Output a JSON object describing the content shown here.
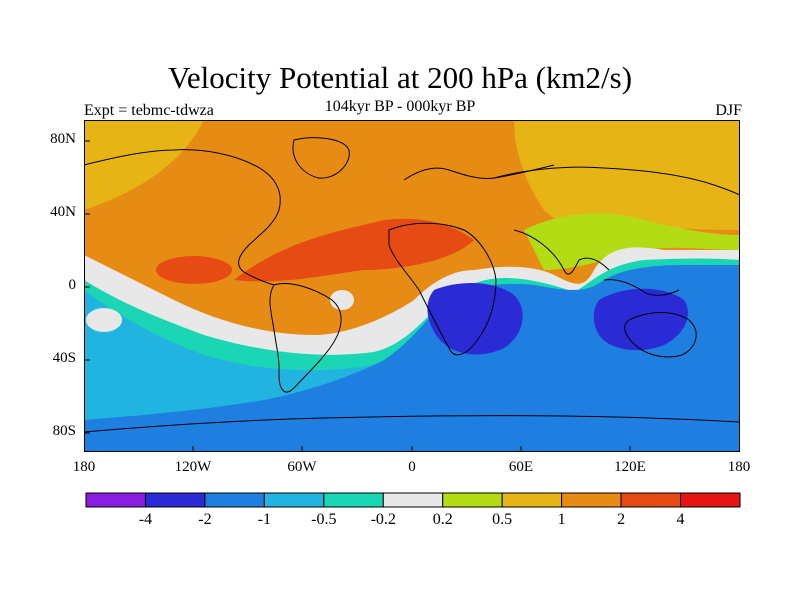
{
  "title": "Velocity Potential at 200 hPa (km2/s)",
  "subtitle": "104kyr BP - 000kyr BP",
  "left_label": "Expt = tebmc-tdwza",
  "right_label": "DJF",
  "lat_labels": [
    "80N",
    "40N",
    "0",
    "40S",
    "80S"
  ],
  "lon_labels": [
    "180",
    "120W",
    "60W",
    "0",
    "60E",
    "120E",
    "180"
  ],
  "colorbar": {
    "labels": [
      "-4",
      "-2",
      "-1",
      "-0.5",
      "-0.2",
      "0.2",
      "0.5",
      "1",
      "2",
      "4"
    ],
    "colors": [
      "#8a1ee0",
      "#2b2bd6",
      "#1e7fe0",
      "#22b4e0",
      "#1ad6b4",
      "#e8e8e8",
      "#b4dc14",
      "#e6b414",
      "#e68c14",
      "#e64b14",
      "#e61414"
    ]
  },
  "palette": {
    "ocean_neg_deep": "#2b2bd6",
    "neg_mid": "#1e7fe0",
    "neg_light": "#22b4e0",
    "neg_teal": "#1ad6b4",
    "neutral": "#e8e8e8",
    "pos_green": "#b4dc14",
    "pos_yellow": "#e6b414",
    "pos_orange": "#e68c14",
    "pos_red_orange": "#e64b14",
    "pos_red": "#e61414"
  }
}
